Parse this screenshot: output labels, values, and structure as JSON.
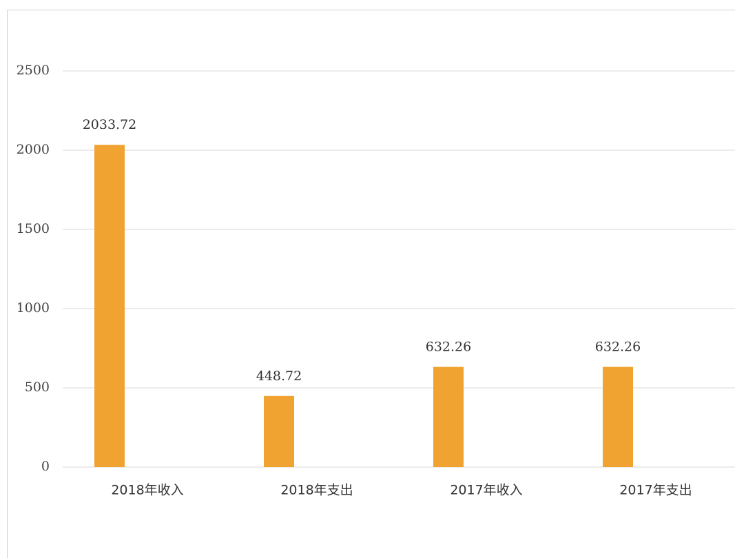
{
  "chart_data": {
    "type": "bar",
    "categories": [
      "2018年收入",
      "2018年支出",
      "2017年收入",
      "2017年支出"
    ],
    "values": [
      2033.72,
      448.72,
      632.26,
      632.26
    ],
    "color": "#f0a330",
    "ylim": [
      0,
      2500
    ],
    "yticks": [
      0,
      500,
      1000,
      1500,
      2000,
      2500
    ],
    "grid": true
  }
}
